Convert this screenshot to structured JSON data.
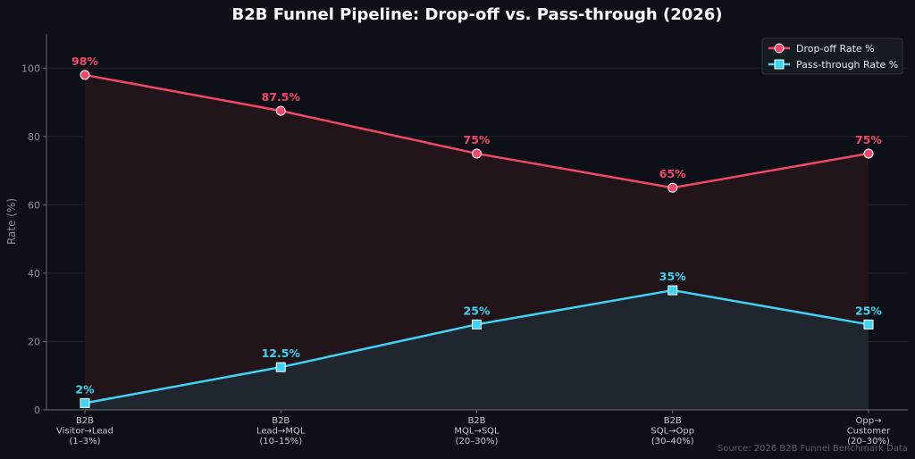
{
  "chart_data": {
    "type": "line",
    "title": "B2B Funnel Pipeline: Drop-off vs. Pass-through (2026)",
    "ylabel": "Rate (%)",
    "xlabel": "",
    "ylim": [
      0,
      110
    ],
    "yticks": [
      0,
      20,
      40,
      60,
      80,
      100
    ],
    "grid": true,
    "legend_position": "top-right",
    "categories": [
      [
        "B2B",
        "Visitor→Lead",
        "(1–3%)"
      ],
      [
        "B2B",
        "Lead→MQL",
        "(10–15%)"
      ],
      [
        "B2B",
        "MQL→SQL",
        "(20–30%)"
      ],
      [
        "B2B",
        "SQL→Opp",
        "(30–40%)"
      ],
      [
        "Opp→",
        "Customer",
        "(20–30%)"
      ]
    ],
    "series": [
      {
        "name": "Drop-off Rate %",
        "values": [
          98,
          87.5,
          75,
          65,
          75
        ],
        "labels": [
          "98%",
          "87.5%",
          "75%",
          "65%",
          "75%"
        ],
        "color": "#f0476a",
        "marker": "circle",
        "fill": "#211519"
      },
      {
        "name": "Pass-through Rate %",
        "values": [
          2,
          12.5,
          25,
          35,
          25
        ],
        "labels": [
          "2%",
          "12.5%",
          "25%",
          "35%",
          "25%"
        ],
        "color": "#3fd3f5",
        "marker": "square",
        "fill": "#20262f"
      }
    ],
    "source_note": "Source: 2026 B2B Funnel Benchmark Data"
  }
}
